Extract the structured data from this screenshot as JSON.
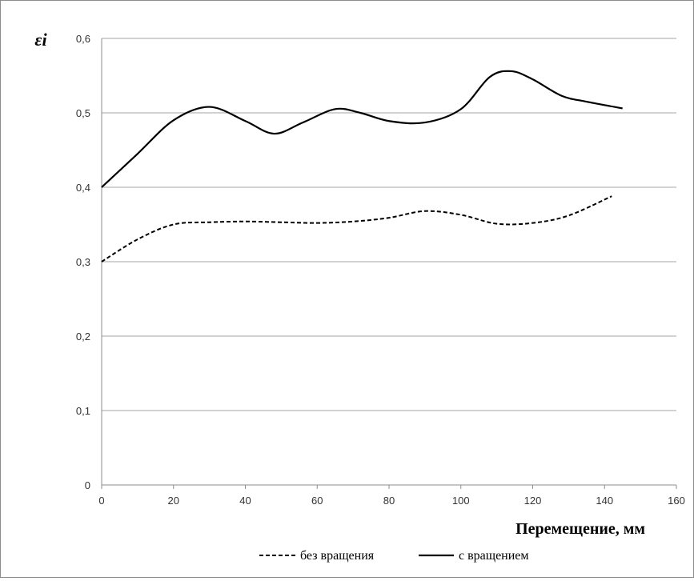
{
  "chart_data": {
    "type": "line",
    "title": "",
    "xlabel": "Перемещение, мм",
    "ylabel": "εi",
    "xlim": [
      0,
      160
    ],
    "ylim": [
      0,
      0.6
    ],
    "x_ticks": [
      0,
      20,
      40,
      60,
      80,
      100,
      120,
      140,
      160
    ],
    "y_ticks": [
      0,
      0.1,
      0.2,
      0.3,
      0.4,
      0.5,
      0.6
    ],
    "x_tick_labels": [
      "0",
      "20",
      "40",
      "60",
      "80",
      "100",
      "120",
      "140",
      "160"
    ],
    "y_tick_labels": [
      "0",
      "0,1",
      "0,2",
      "0,3",
      "0,4",
      "0,5",
      "0,6"
    ],
    "grid": "horizontal",
    "legend_position": "bottom",
    "series": [
      {
        "name": "без вращения",
        "style": "dashed",
        "color": "#000000",
        "points": [
          [
            0,
            0.3
          ],
          [
            10,
            0.33
          ],
          [
            20,
            0.35
          ],
          [
            30,
            0.353
          ],
          [
            40,
            0.354
          ],
          [
            50,
            0.353
          ],
          [
            60,
            0.352
          ],
          [
            70,
            0.354
          ],
          [
            80,
            0.359
          ],
          [
            90,
            0.368
          ],
          [
            100,
            0.363
          ],
          [
            110,
            0.351
          ],
          [
            120,
            0.352
          ],
          [
            130,
            0.362
          ],
          [
            142,
            0.388
          ]
        ]
      },
      {
        "name": "с вращением",
        "style": "solid",
        "color": "#000000",
        "points": [
          [
            0,
            0.4
          ],
          [
            10,
            0.445
          ],
          [
            20,
            0.49
          ],
          [
            30,
            0.508
          ],
          [
            40,
            0.489
          ],
          [
            48,
            0.472
          ],
          [
            56,
            0.487
          ],
          [
            65,
            0.505
          ],
          [
            72,
            0.5
          ],
          [
            80,
            0.489
          ],
          [
            90,
            0.487
          ],
          [
            100,
            0.505
          ],
          [
            108,
            0.548
          ],
          [
            114,
            0.556
          ],
          [
            120,
            0.545
          ],
          [
            128,
            0.523
          ],
          [
            135,
            0.515
          ],
          [
            145,
            0.506
          ]
        ]
      }
    ]
  }
}
